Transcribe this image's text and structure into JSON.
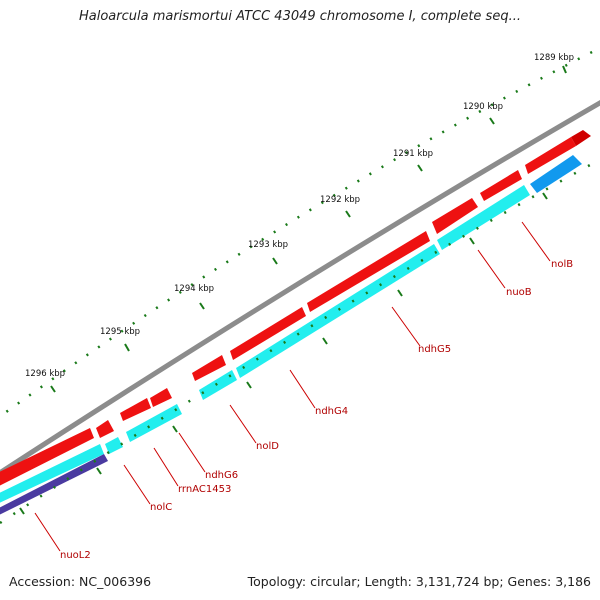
{
  "title": "Haloarcula marismortui ATCC 43049 chromosome I, complete seq...",
  "accession": "Accession: NC_006396",
  "summary": "Topology: circular; Length: 3,131,724 bp; Genes: 3,186",
  "colors": {
    "backbone": "#8c8c8c",
    "forward_gene": "#ee1111",
    "reverse_gene": "#22eeee",
    "rrna": "#1199ee",
    "other_strand": "#4a3aa0",
    "tick": "#1a7a1a",
    "label": "#b00000"
  },
  "scale_labels": [
    "1289 kbp",
    "1290 kbp",
    "1291 kbp",
    "1292 kbp",
    "1293 kbp",
    "1294 kbp",
    "1295 kbp",
    "1296 kbp"
  ],
  "gene_labels": [
    "nolB",
    "nuoB",
    "ndhG5",
    "ndhG4",
    "nolD",
    "ndhG6",
    "rrnAC1453",
    "nolC",
    "nuoL2"
  ]
}
